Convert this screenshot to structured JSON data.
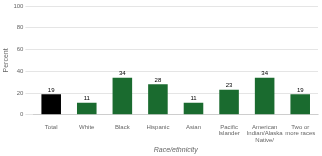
{
  "chart_data": {
    "type": "bar",
    "categories": [
      "Total",
      "White",
      "Black",
      "Hispanic",
      "Asian",
      "Pacific\nIslander",
      "American\nIndian/Alaska\nNative/",
      "Two or\nmore races"
    ],
    "values": [
      19,
      11,
      34,
      28,
      11,
      23,
      34,
      19
    ],
    "colors": [
      "#000000",
      "#1a6b2f",
      "#1a6b2f",
      "#1a6b2f",
      "#1a6b2f",
      "#1a6b2f",
      "#1a6b2f",
      "#1a6b2f"
    ],
    "ylabel": "Percent",
    "xlabel": "Race/ethnicity",
    "ylim": [
      0,
      100
    ],
    "yticks": [
      0,
      20,
      40,
      60,
      80,
      100
    ],
    "grid": true,
    "data_labels": true
  }
}
